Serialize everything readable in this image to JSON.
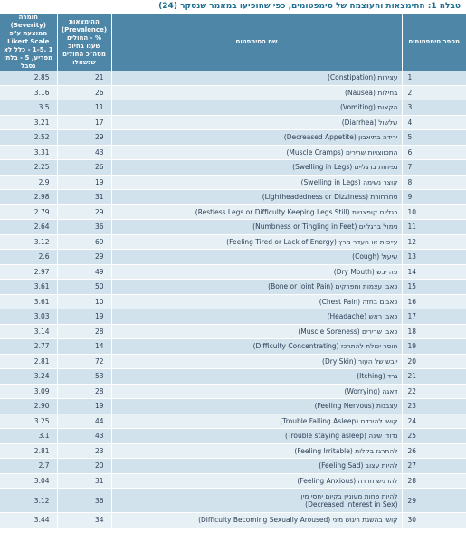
{
  "caption": "טבלה 1: ההימצאות והעוצמה של סימפטומים, כפי שהופיעו במאמר שנסקר (24)",
  "headers": {
    "number": "מספר סימפטומים",
    "name": "שם הסימפטום",
    "prevalence": "ההימצאות (Prevalence) % - החולים שענו בחיוב מסה\"כ החולים שנשאלו",
    "severity": "חומרה (Severity) ממוצעת ע\"פ Likert Scale 1-5, 1 - כלל לא מפריע, 5 - בלתי נסבל"
  },
  "rows": [
    {
      "num": "1",
      "name": "עצירות (Constipation)",
      "prev": "21",
      "sev": "2.85"
    },
    {
      "num": "2",
      "name": "בחילות (Nausea)",
      "prev": "26",
      "sev": "3.16"
    },
    {
      "num": "3",
      "name": "הקאות (Vomiting)",
      "prev": "11",
      "sev": "3.5"
    },
    {
      "num": "4",
      "name": "שלשול (Diarrhea)",
      "prev": "17",
      "sev": "3.21"
    },
    {
      "num": "5",
      "name": "ירידה בתיאבון (Decreased Appetite)",
      "prev": "29",
      "sev": "2.52"
    },
    {
      "num": "6",
      "name": "התכווצויות שרירים (Muscle Cramps)",
      "prev": "43",
      "sev": "3.31"
    },
    {
      "num": "7",
      "name": "נפיחות ברגליים (Swelling in Legs)",
      "prev": "26",
      "sev": "2.25"
    },
    {
      "num": "8",
      "name": "קוצר נשימה (Swelling in Legs)",
      "prev": "19",
      "sev": "2.9"
    },
    {
      "num": "9",
      "name": "סחרחורת (Lightheadedness or Dizziness)",
      "prev": "31",
      "sev": "2.98"
    },
    {
      "num": "10",
      "name": "רגליים קופצניות (Restless Legs or Difficulty Keeping Legs Still)",
      "prev": "29",
      "sev": "2.79"
    },
    {
      "num": "11",
      "name": "נימול ברגליים (Numbness or Tingling in Feet)",
      "prev": "36",
      "sev": "2.64"
    },
    {
      "num": "12",
      "name": "עייפות או העדר מרץ (Feeling Tired or Lack of Energy)",
      "prev": "69",
      "sev": "3.12"
    },
    {
      "num": "13",
      "name": "שיעול (Cough)",
      "prev": "29",
      "sev": "2.6"
    },
    {
      "num": "14",
      "name": "פה יבש (Dry Mouth)",
      "prev": "49",
      "sev": "2.97"
    },
    {
      "num": "15",
      "name": "כאבי עצמות ומפרקים (Bone or Joint Pain)",
      "prev": "50",
      "sev": "3.61"
    },
    {
      "num": "16",
      "name": "כאבים בחזה (Chest Pain)",
      "prev": "10",
      "sev": "3.61"
    },
    {
      "num": "17",
      "name": "כאבי ראש (Headache)",
      "prev": "19",
      "sev": "3.03"
    },
    {
      "num": "18",
      "name": "כאבי שרירים (Muscle Soreness)",
      "prev": "28",
      "sev": "3.14"
    },
    {
      "num": "19",
      "name": "חוסר יכולת להתרכז (Difficulty Concentrating)",
      "prev": "14",
      "sev": "2.77"
    },
    {
      "num": "20",
      "name": "יובש של העור (Dry Skin)",
      "prev": "72",
      "sev": "2.81"
    },
    {
      "num": "21",
      "name": "גרד (Itching)",
      "prev": "53",
      "sev": "3.24"
    },
    {
      "num": "22",
      "name": "דאגה (Worrying)",
      "prev": "28",
      "sev": "3.09"
    },
    {
      "num": "23",
      "name": "עצבנות (Feeling Nervous)",
      "prev": "19",
      "sev": "2.90"
    },
    {
      "num": "24",
      "name": "קושי להירדם (Trouble Falling Asleep)",
      "prev": "44",
      "sev": "3.25"
    },
    {
      "num": "25",
      "name": "נדודי שינה (Trouble staying asleep)",
      "prev": "43",
      "sev": "3.1"
    },
    {
      "num": "26",
      "name": "להתרגז בקלות (Feeling Irritable)",
      "prev": "23",
      "sev": "2.81"
    },
    {
      "num": "27",
      "name": "להיות עצוב (Feeling Sad)",
      "prev": "20",
      "sev": "2.7"
    },
    {
      "num": "28",
      "name": "להרגיש חרדה (Feeling Anxious)",
      "prev": "31",
      "sev": "3.04"
    },
    {
      "num": "29",
      "name": "להיות פחות מעוניין בקיום יחסי מין",
      "name2": "(Decreased Interest in Sex)",
      "prev": "36",
      "sev": "3.12"
    },
    {
      "num": "30",
      "name": "קושי בהשגת ריגוש מיני (Difficulty Becoming Sexually Aroused)",
      "prev": "34",
      "sev": "3.44"
    }
  ]
}
